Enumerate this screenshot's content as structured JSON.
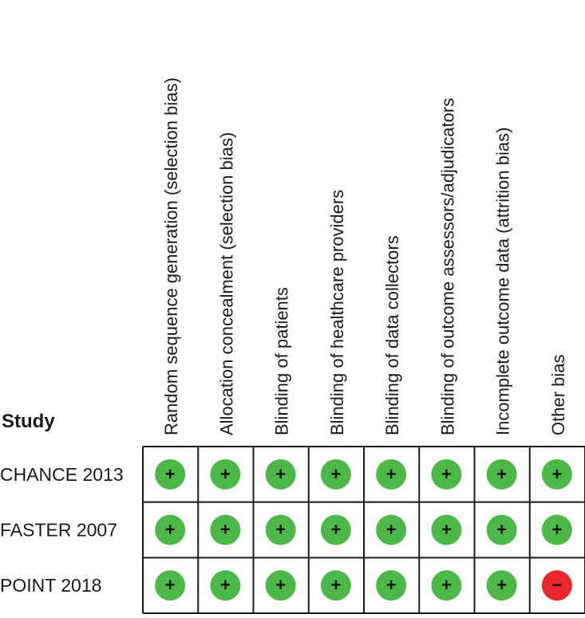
{
  "chart_data": {
    "type": "table",
    "row_header": "Study",
    "domains": [
      "Random sequence generation (selection bias)",
      "Allocation concealment (selection bias)",
      "Blinding of patients",
      "Blinding of healthcare providers",
      "Blinding of data collectors",
      "Blinding of outcome assessors/adjudicators",
      "Incomplete outcome data (attrition bias)",
      "Other bias"
    ],
    "studies": [
      "CHANCE 2013",
      "FASTER 2007",
      "POINT 2018"
    ],
    "judgements": [
      [
        "+",
        "+",
        "+",
        "+",
        "+",
        "+",
        "+",
        "+"
      ],
      [
        "+",
        "+",
        "+",
        "+",
        "+",
        "+",
        "+",
        "+"
      ],
      [
        "+",
        "+",
        "+",
        "+",
        "+",
        "+",
        "+",
        "−"
      ]
    ],
    "colors": {
      "low_risk": "#4cb848",
      "high_risk": "#e8262c",
      "symbol": "#111111",
      "grid": "#1a1a1a"
    }
  }
}
